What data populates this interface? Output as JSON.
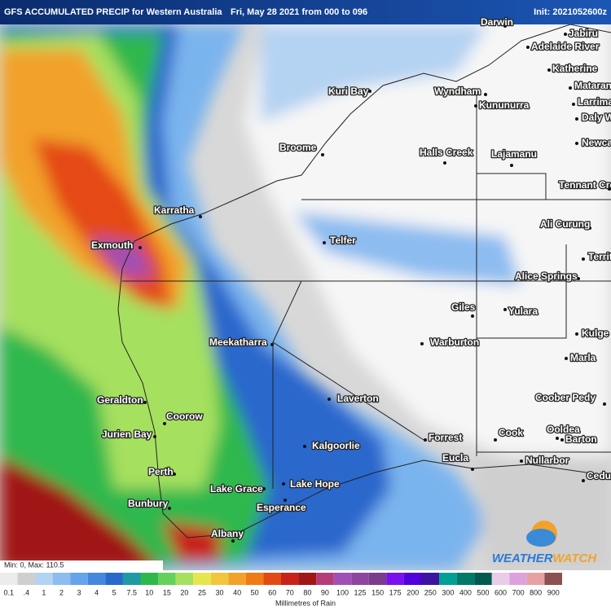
{
  "header": {
    "title": "GFS ACCUMULATED PRECIP for Western Australia",
    "run": "Fri, May 28 2021 from 000 to 096",
    "init": "Init: 2021052600z"
  },
  "places": [
    "Darwin",
    "Jabiru",
    "Adelaide River",
    "Katherine",
    "Mataran",
    "Larrima",
    "Daly W",
    "Kuri Bay",
    "Wyndham",
    "Kununurra",
    "Newca",
    "Broome",
    "Halls Creek",
    "Lajamanu",
    "Tennant Creek",
    "Karratha",
    "Ali Curung",
    "Telfer",
    "Exmouth",
    "Territ",
    "Alice Springs",
    "Giles",
    "Yulara",
    "Kulge",
    "Warburton",
    "Meekatharra",
    "Marla",
    "Laverton",
    "Geraldton",
    "Coober Pedy",
    "Coorow",
    "Jurien Bay",
    "Forrest",
    "Cook",
    "Ooldea",
    "Barton",
    "Kalgoorlie",
    "Eucla",
    "Nullarbor",
    "Perth",
    "Lake Hope",
    "Ceduna",
    "Lake Grace",
    "Bunbury",
    "Esperance",
    "Albany"
  ],
  "stats": "Min: 0, Max: 110.5",
  "logo": {
    "part1": "WEATHER",
    "part2": "WATCH"
  },
  "colorbar": {
    "title": "Millimetres of Rain",
    "labels": [
      "0.1",
      ".4",
      "1",
      "2",
      "3",
      "4",
      "5",
      "7.5",
      "10",
      "15",
      "20",
      "25",
      "30",
      "40",
      "50",
      "60",
      "70",
      "80",
      "90",
      "100",
      "125",
      "150",
      "175",
      "200",
      "250",
      "300",
      "400",
      "500",
      "600",
      "700",
      "800",
      "900"
    ],
    "colors": [
      "#ececec",
      "#cfcfcf",
      "#b4d2f2",
      "#8cbcf0",
      "#64a4ea",
      "#4488de",
      "#2a68cc",
      "#1f9aa4",
      "#2eb84e",
      "#62d25a",
      "#a6e05e",
      "#e6e64e",
      "#f2c63c",
      "#f2a22a",
      "#f07a16",
      "#e44a14",
      "#c8221a",
      "#a01616",
      "#b43c78",
      "#a050b4",
      "#8c46a0",
      "#7a3c8c",
      "#7a10f0",
      "#5000dc",
      "#3c14a0",
      "#00a096",
      "#007a66",
      "#005a50",
      "#e8cce8",
      "#dca2dc",
      "#e6a2a2",
      "#8c5050"
    ]
  }
}
